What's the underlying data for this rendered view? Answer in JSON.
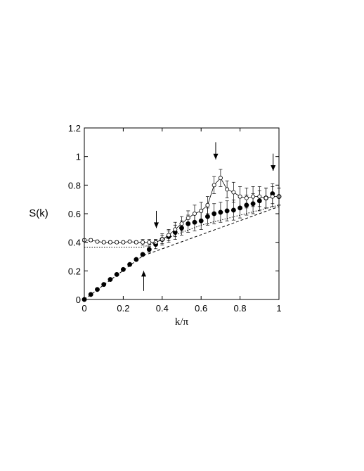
{
  "chart_data": {
    "type": "scatter",
    "title": "",
    "xlabel": "k/π",
    "ylabel": "S(k)",
    "xlim": [
      0,
      1
    ],
    "ylim": [
      0,
      1.2
    ],
    "xticks": [
      "0",
      "0.2",
      "0.4",
      "0.6",
      "0.8",
      "1"
    ],
    "yticks": [
      "0",
      "0.2",
      "0.4",
      "0.6",
      "0.8",
      "1",
      "1.2"
    ],
    "grid": false,
    "series": [
      {
        "marker": "filled-circle",
        "connected": false,
        "color": "#000000",
        "x": [
          0.0,
          0.0333,
          0.0667,
          0.1,
          0.1333,
          0.1667,
          0.2,
          0.2333,
          0.2667,
          0.3,
          0.3333,
          0.3667,
          0.4,
          0.4333,
          0.4667,
          0.5,
          0.5333,
          0.5667,
          0.6,
          0.6333,
          0.6667,
          0.7,
          0.7333,
          0.7667,
          0.8,
          0.8333,
          0.8667,
          0.9,
          0.9333,
          0.9667,
          1.0
        ],
        "y": [
          0.0,
          0.035,
          0.07,
          0.105,
          0.14,
          0.175,
          0.21,
          0.245,
          0.28,
          0.315,
          0.35,
          0.385,
          0.42,
          0.44,
          0.47,
          0.5,
          0.53,
          0.54,
          0.55,
          0.58,
          0.6,
          0.61,
          0.62,
          0.625,
          0.64,
          0.66,
          0.67,
          0.69,
          0.71,
          0.74,
          0.72
        ],
        "err": [
          0,
          0,
          0,
          0,
          0,
          0,
          0,
          0,
          0,
          0.01,
          0.02,
          0.03,
          0.04,
          0.04,
          0.05,
          0.05,
          0.06,
          0.06,
          0.06,
          0.06,
          0.07,
          0.07,
          0.07,
          0.07,
          0.07,
          0.07,
          0.07,
          0.07,
          0.07,
          0.07,
          0.06
        ]
      },
      {
        "marker": "open-circle",
        "connected": true,
        "color": "#000000",
        "x": [
          0.0,
          0.0333,
          0.0667,
          0.1,
          0.1333,
          0.1667,
          0.2,
          0.2333,
          0.2667,
          0.3,
          0.3333,
          0.3667,
          0.4,
          0.4333,
          0.4667,
          0.5,
          0.5333,
          0.5667,
          0.6,
          0.6333,
          0.6667,
          0.7,
          0.7333,
          0.7667,
          0.8,
          0.8333,
          0.8667,
          0.9,
          0.9333,
          0.9667,
          1.0
        ],
        "y": [
          0.415,
          0.415,
          0.405,
          0.4,
          0.4,
          0.4,
          0.4,
          0.405,
          0.4,
          0.4,
          0.4,
          0.4,
          0.42,
          0.45,
          0.49,
          0.53,
          0.57,
          0.6,
          0.62,
          0.66,
          0.8,
          0.85,
          0.77,
          0.75,
          0.72,
          0.71,
          0.72,
          0.72,
          0.71,
          0.72,
          0.72
        ],
        "err": [
          0.01,
          0.01,
          0.01,
          0.01,
          0.01,
          0.01,
          0.01,
          0.01,
          0.01,
          0.02,
          0.02,
          0.02,
          0.03,
          0.04,
          0.05,
          0.05,
          0.05,
          0.06,
          0.06,
          0.06,
          0.06,
          0.06,
          0.06,
          0.07,
          0.07,
          0.07,
          0.07,
          0.07,
          0.07,
          0.07,
          0.06
        ]
      },
      {
        "style": "dashed",
        "color": "#000000",
        "x": [
          0.0,
          0.3,
          1.0
        ],
        "y": [
          0.0,
          0.305,
          0.65
        ]
      },
      {
        "style": "dotted",
        "color": "#000000",
        "x": [
          0.0,
          0.3,
          0.6,
          1.0
        ],
        "y": [
          0.365,
          0.365,
          0.52,
          0.66
        ]
      }
    ],
    "annotations": [
      {
        "kind": "arrow-down",
        "x": 0.37,
        "y_tail": 0.62,
        "y_head": 0.5
      },
      {
        "kind": "arrow-down",
        "x": 0.675,
        "y_tail": 1.1,
        "y_head": 0.98
      },
      {
        "kind": "arrow-down",
        "x": 0.97,
        "y_tail": 1.02,
        "y_head": 0.9
      },
      {
        "kind": "arrow-up",
        "x": 0.305,
        "y_tail": 0.06,
        "y_head": 0.2
      }
    ]
  }
}
